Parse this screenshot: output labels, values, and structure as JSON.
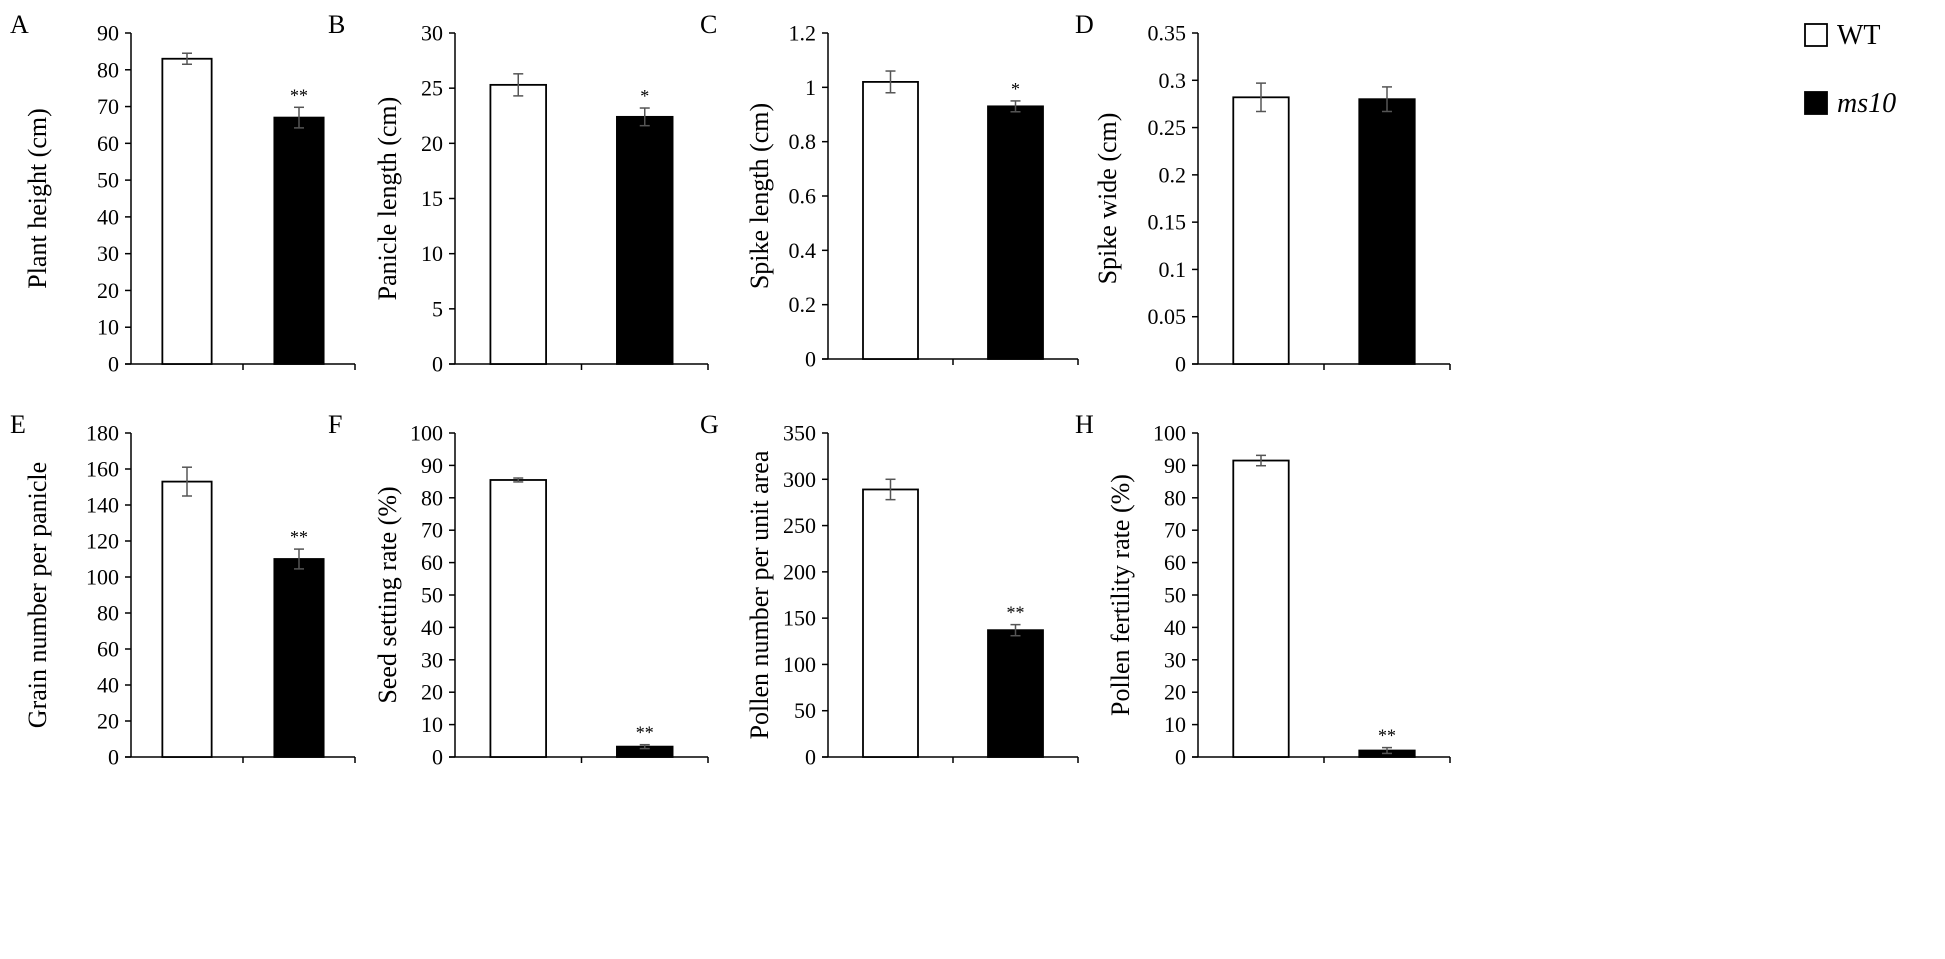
{
  "legend": {
    "items": [
      {
        "label": "WT",
        "color": "#ffffff",
        "italic": false
      },
      {
        "label": "ms10",
        "color": "#000000",
        "italic": true
      }
    ]
  },
  "chart_data": [
    {
      "type": "bar",
      "panel": "A",
      "ylabel": "Plant height (cm)",
      "ylim": [
        0,
        90
      ],
      "ytick_step": 10,
      "decimals": 0,
      "ticks": [
        "0",
        "10",
        "20",
        "30",
        "40",
        "50",
        "60",
        "70",
        "80",
        "90"
      ],
      "series": [
        {
          "name": "WT",
          "value": 83,
          "error": 1.5,
          "significance": ""
        },
        {
          "name": "ms10",
          "value": 67,
          "error": 2.8,
          "significance": "**"
        }
      ]
    },
    {
      "type": "bar",
      "panel": "B",
      "ylabel": "Panicle length (cm)",
      "ylim": [
        0,
        30
      ],
      "ytick_step": 5,
      "decimals": 0,
      "ticks": [
        "0",
        "5",
        "10",
        "15",
        "20",
        "25",
        "30"
      ],
      "series": [
        {
          "name": "WT",
          "value": 25.3,
          "error": 1.0,
          "significance": ""
        },
        {
          "name": "ms10",
          "value": 22.4,
          "error": 0.8,
          "significance": "*"
        }
      ]
    },
    {
      "type": "bar",
      "panel": "C",
      "ylabel": "Spike length (cm)",
      "ylim": [
        0,
        1.2
      ],
      "ytick_step": 0.2,
      "decimals": 1,
      "ticks": [
        "0",
        "0.2",
        "0.4",
        "0.6",
        "0.8",
        "1",
        "1.2"
      ],
      "series": [
        {
          "name": "WT",
          "value": 1.02,
          "error": 0.04,
          "significance": ""
        },
        {
          "name": "ms10",
          "value": 0.93,
          "error": 0.02,
          "significance": "*"
        }
      ]
    },
    {
      "type": "bar",
      "panel": "D",
      "ylabel": "Spike wide (cm)",
      "ylim": [
        0,
        0.35
      ],
      "ytick_step": 0.05,
      "decimals": 2,
      "ticks": [
        "0",
        "0.05",
        "0.1",
        "0.15",
        "0.2",
        "0.25",
        "0.3",
        "0.35"
      ],
      "series": [
        {
          "name": "WT",
          "value": 0.282,
          "error": 0.015,
          "significance": ""
        },
        {
          "name": "ms10",
          "value": 0.28,
          "error": 0.013,
          "significance": ""
        }
      ]
    },
    {
      "type": "bar",
      "panel": "E",
      "ylabel": "Grain number per panicle",
      "ylim": [
        0,
        180
      ],
      "ytick_step": 20,
      "decimals": 0,
      "ticks": [
        "0",
        "20",
        "40",
        "60",
        "80",
        "100",
        "120",
        "140",
        "160",
        "180"
      ],
      "series": [
        {
          "name": "WT",
          "value": 153,
          "error": 8,
          "significance": ""
        },
        {
          "name": "ms10",
          "value": 110,
          "error": 5.5,
          "significance": "**"
        }
      ]
    },
    {
      "type": "bar",
      "panel": "F",
      "ylabel": "Seed setting rate (%)",
      "ylim": [
        0,
        100
      ],
      "ytick_step": 10,
      "decimals": 0,
      "ticks": [
        "0",
        "10",
        "20",
        "30",
        "40",
        "50",
        "60",
        "70",
        "80",
        "90",
        "100"
      ],
      "series": [
        {
          "name": "WT",
          "value": 85.5,
          "error": 0.6,
          "significance": ""
        },
        {
          "name": "ms10",
          "value": 3.2,
          "error": 0.6,
          "significance": "**"
        }
      ]
    },
    {
      "type": "bar",
      "panel": "G",
      "ylabel": "Pollen number per unit area",
      "ylim": [
        0,
        350
      ],
      "ytick_step": 50,
      "decimals": 0,
      "ticks": [
        "0",
        "50",
        "100",
        "150",
        "200",
        "250",
        "300",
        "350"
      ],
      "series": [
        {
          "name": "WT",
          "value": 289,
          "error": 11,
          "significance": ""
        },
        {
          "name": "ms10",
          "value": 137,
          "error": 6,
          "significance": "**"
        }
      ]
    },
    {
      "type": "bar",
      "panel": "H",
      "ylabel": "Pollen fertility rate (%)",
      "ylim": [
        0,
        100
      ],
      "ytick_step": 10,
      "decimals": 0,
      "ticks": [
        "0",
        "10",
        "20",
        "30",
        "40",
        "50",
        "60",
        "70",
        "80",
        "90",
        "100"
      ],
      "series": [
        {
          "name": "WT",
          "value": 91.5,
          "error": 1.6,
          "significance": ""
        },
        {
          "name": "ms10",
          "value": 2,
          "error": 0.9,
          "significance": "**"
        }
      ]
    }
  ]
}
